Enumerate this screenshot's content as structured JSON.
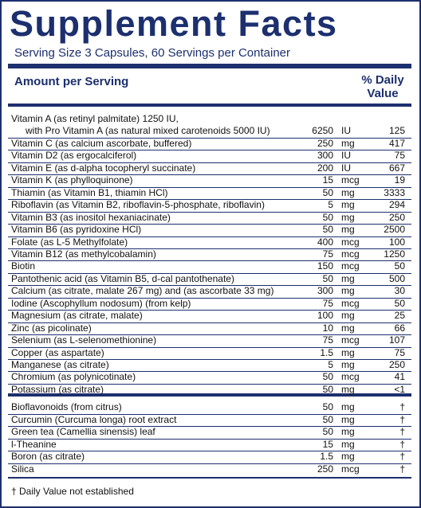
{
  "title": "Supplement Facts",
  "serving": "Serving Size 3 Capsules, 60 Servings per Container",
  "header": {
    "amount": "Amount per Serving",
    "dv": "% Daily Value"
  },
  "rows": [
    {
      "name": "Vitamin A (as retinyl palmitate) 1250 IU,",
      "note": "with Pro Vitamin A (as natural mixed carotenoids 5000 IU)",
      "amount": "6250",
      "unit": "IU",
      "dv": "125"
    },
    {
      "name": "Vitamin C (as calcium ascorbate, buffered)",
      "amount": "250",
      "unit": "mg",
      "dv": "417"
    },
    {
      "name": "Vitamin D2 (as ergocalciferol)",
      "amount": "300",
      "unit": "IU",
      "dv": "75"
    },
    {
      "name": "Vitamin E (as d-alpha tocopheryl succinate)",
      "amount": "200",
      "unit": "IU",
      "dv": "667"
    },
    {
      "name": "Vitamin K (as phylloquinone)",
      "amount": "15",
      "unit": "mcg",
      "dv": "19"
    },
    {
      "name": "Thiamin (as Vitamin B1, thiamin HCl)",
      "amount": "50",
      "unit": "mg",
      "dv": "3333"
    },
    {
      "name": "Riboflavin (as Vitamin B2, riboflavin-5-phosphate, riboflavin)",
      "amount": "5",
      "unit": "mg",
      "dv": "294"
    },
    {
      "name": "Vitamin B3 (as inositol hexaniacinate)",
      "amount": "50",
      "unit": "mg",
      "dv": "250"
    },
    {
      "name": "Vitamin B6 (as pyridoxine HCl)",
      "amount": "50",
      "unit": "mg",
      "dv": "2500"
    },
    {
      "name": "Folate (as L-5 Methylfolate)",
      "amount": "400",
      "unit": "mcg",
      "dv": "100"
    },
    {
      "name": "Vitamin B12 (as methylcobalamin)",
      "amount": "75",
      "unit": "mcg",
      "dv": "1250"
    },
    {
      "name": "Biotin",
      "amount": "150",
      "unit": "mcg",
      "dv": "50"
    },
    {
      "name": "Pantothenic acid (as Vitamin B5, d-cal pantothenate)",
      "amount": "50",
      "unit": "mg",
      "dv": "500"
    },
    {
      "name": "Calcium (as citrate, malate 267 mg) and (as ascorbate 33 mg)",
      "amount": "300",
      "unit": "mg",
      "dv": "30"
    },
    {
      "name": "Iodine (Ascophyllum nodosum) (from kelp)",
      "amount": "75",
      "unit": "mcg",
      "dv": "50"
    },
    {
      "name": "Magnesium (as citrate, malate)",
      "amount": "100",
      "unit": "mg",
      "dv": "25"
    },
    {
      "name": "Zinc (as picolinate)",
      "amount": "10",
      "unit": "mg",
      "dv": "66"
    },
    {
      "name": "Selenium (as L-selenomethionine)",
      "amount": "75",
      "unit": "mcg",
      "dv": "107"
    },
    {
      "name": "Copper (as aspartate)",
      "amount": "1.5",
      "unit": "mg",
      "dv": "75"
    },
    {
      "name": "Manganese (as citrate)",
      "amount": "5",
      "unit": "mg",
      "dv": "250"
    },
    {
      "name": "Chromium (as polynicotinate)",
      "amount": "50",
      "unit": "mcg",
      "dv": "41"
    },
    {
      "name": "Potassium (as citrate)",
      "amount": "50",
      "unit": "mg",
      "dv": "<1"
    }
  ],
  "other_rows": [
    {
      "name": "Bioflavonoids (from citrus)",
      "amount": "50",
      "unit": "mg",
      "dv": "†"
    },
    {
      "name": "Curcumin (Curcuma longa) root extract",
      "amount": "50",
      "unit": "mg",
      "dv": "†"
    },
    {
      "name": "Green tea (Camellia sinensis) leaf",
      "amount": "50",
      "unit": "mg",
      "dv": "†"
    },
    {
      "name": "l-Theanine",
      "amount": "15",
      "unit": "mg",
      "dv": "†"
    },
    {
      "name": "Boron (as citrate)",
      "amount": "1.5",
      "unit": "mg",
      "dv": "†"
    },
    {
      "name": "Silica",
      "amount": "250",
      "unit": "mcg",
      "dv": "†"
    }
  ],
  "footnote": "† Daily Value not established"
}
